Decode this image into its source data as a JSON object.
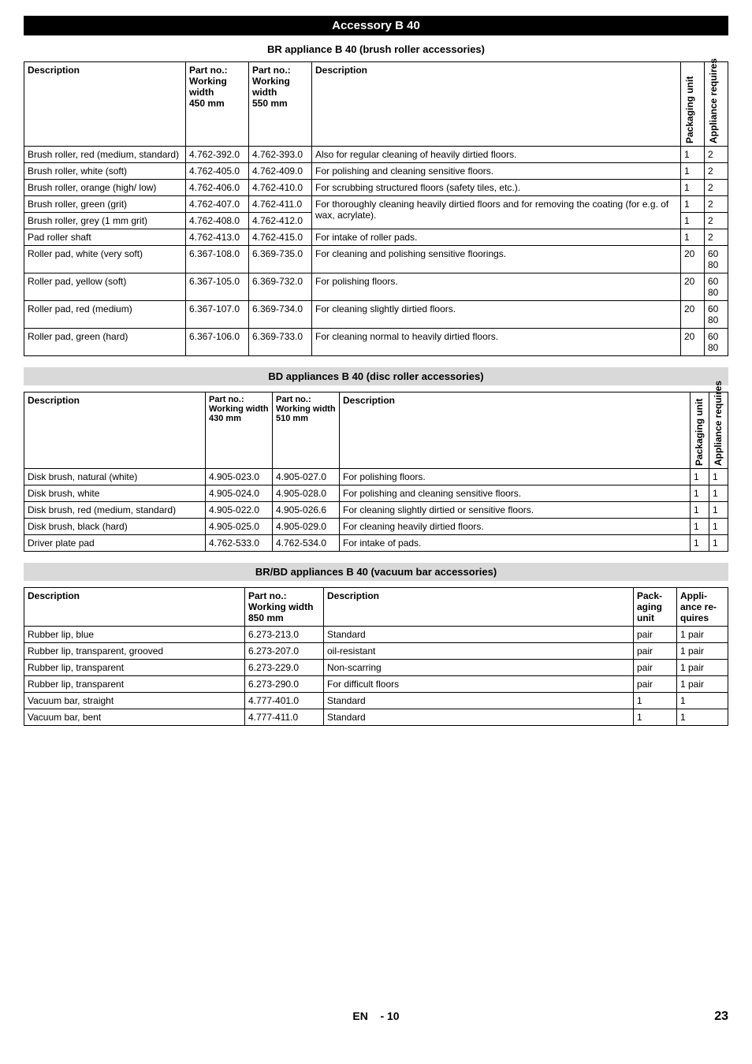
{
  "header": "Accessory B 40",
  "section1": {
    "title": "BR appliance B 40 (brush roller accessories)",
    "headers": {
      "desc": "Description",
      "part1": "Part no.:\nWorking width\n450 mm",
      "part2": "Part no.:\nWorking width\n550 mm",
      "desc2": "Description",
      "pack": "Packaging unit",
      "appl": "Appliance requires"
    },
    "rows": [
      {
        "d": "Brush roller, red (medium, standard)",
        "p1": "4.762-392.0",
        "p2": "4.762-393.0",
        "d2": "Also for regular cleaning of heavily dirtied floors.",
        "pk": "1",
        "ap": "2",
        "rowspan": 1
      },
      {
        "d": "Brush roller, white (soft)",
        "p1": "4.762-405.0",
        "p2": "4.762-409.0",
        "d2": "For polishing and cleaning sensitive floors.",
        "pk": "1",
        "ap": "2",
        "rowspan": 1
      },
      {
        "d": "Brush roller, orange (high/ low)",
        "p1": "4.762-406.0",
        "p2": "4.762-410.0",
        "d2": "For scrubbing structured floors (safety tiles, etc.).",
        "pk": "1",
        "ap": "2",
        "rowspan": 1
      },
      {
        "d": "Brush roller, green (grit)",
        "p1": "4.762-407.0",
        "p2": "4.762-411.0",
        "d2": "For thoroughly cleaning heavily dirtied floors and for removing the coating (for e.g. of wax, acrylate).",
        "pk": "1",
        "ap": "2",
        "rowspan": 2
      },
      {
        "d": "Brush roller, grey (1 mm grit)",
        "p1": "4.762-408.0",
        "p2": "4.762-412.0",
        "d2": "",
        "pk": "1",
        "ap": "2",
        "rowspan": 0
      },
      {
        "d": "Pad roller shaft",
        "p1": "4.762-413.0",
        "p2": "4.762-415.0",
        "d2": "For intake of roller pads.",
        "pk": "1",
        "ap": "2",
        "rowspan": 1
      },
      {
        "d": "Roller pad, white (very soft)",
        "p1": "6.367-108.0",
        "p2": "6.369-735.0",
        "d2": "For cleaning and polishing sensitive floorings.",
        "pk": "20",
        "ap": "60\n80",
        "rowspan": 1
      },
      {
        "d": "Roller pad, yellow (soft)",
        "p1": "6.367-105.0",
        "p2": "6.369-732.0",
        "d2": "For polishing floors.",
        "pk": "20",
        "ap": "60\n80",
        "rowspan": 1
      },
      {
        "d": "Roller pad, red (medium)",
        "p1": "6.367-107.0",
        "p2": "6.369-734.0",
        "d2": "For cleaning slightly dirtied floors.",
        "pk": "20",
        "ap": "60\n80",
        "rowspan": 1
      },
      {
        "d": "Roller pad, green (hard)",
        "p1": "6.367-106.0",
        "p2": "6.369-733.0",
        "d2": "For cleaning normal to heavily dirtied floors.",
        "pk": "20",
        "ap": "60\n80",
        "rowspan": 1
      }
    ]
  },
  "section2": {
    "title": "BD appliances B 40 (disc roller accessories)",
    "headers": {
      "desc": "Description",
      "part1": "Part no.:\nWorking width 430 mm",
      "part2": "Part no.:\nWorking width 510 mm",
      "desc2": "Description",
      "pack": "Packaging unit",
      "appl": "Appliance requires"
    },
    "rows": [
      {
        "d": "Disk brush, natural (white)",
        "p1": "4.905-023.0",
        "p2": "4.905-027.0",
        "d2": "For polishing floors.",
        "pk": "1",
        "ap": "1"
      },
      {
        "d": "Disk brush, white",
        "p1": "4.905-024.0",
        "p2": "4.905-028.0",
        "d2": "For polishing and cleaning sensitive floors.",
        "pk": "1",
        "ap": "1"
      },
      {
        "d": "Disk brush, red (medium, standard)",
        "p1": "4.905-022.0",
        "p2": "4.905-026.6",
        "d2": "For cleaning slightly dirtied or sensitive floors.",
        "pk": "1",
        "ap": "1"
      },
      {
        "d": "Disk brush, black (hard)",
        "p1": "4.905-025.0",
        "p2": "4.905-029.0",
        "d2": "For cleaning heavily dirtied floors.",
        "pk": "1",
        "ap": "1"
      },
      {
        "d": "Driver plate pad",
        "p1": "4.762-533.0",
        "p2": "4.762-534.0",
        "d2": "For intake of pads.",
        "pk": "1",
        "ap": "1"
      }
    ]
  },
  "section3": {
    "title": "BR/BD appliances B 40 (vacuum bar accessories)",
    "headers": {
      "desc": "Description",
      "part": "Part no.:\nWorking width\n850 mm",
      "desc2": "Description",
      "pack": "Packaging unit",
      "appl": "Appliance requires"
    },
    "rows": [
      {
        "d": "Rubber lip, blue",
        "p": "6.273-213.0",
        "d2": "Standard",
        "pk": "pair",
        "ap": "1 pair"
      },
      {
        "d": "Rubber lip, transparent, grooved",
        "p": "6.273-207.0",
        "d2": "oil-resistant",
        "pk": "pair",
        "ap": "1 pair"
      },
      {
        "d": "Rubber lip, transparent",
        "p": "6.273-229.0",
        "d2": "Non-scarring",
        "pk": "pair",
        "ap": "1 pair"
      },
      {
        "d": "Rubber lip, transparent",
        "p": "6.273-290.0",
        "d2": "For difficult floors",
        "pk": "pair",
        "ap": "1 pair"
      },
      {
        "d": "Vacuum bar, straight",
        "p": "4.777-401.0",
        "d2": "Standard",
        "pk": "1",
        "ap": "1"
      },
      {
        "d": "Vacuum bar, bent",
        "p": "4.777-411.0",
        "d2": "Standard",
        "pk": "1",
        "ap": "1"
      }
    ]
  },
  "footer": {
    "lang": "EN",
    "dash": "-",
    "page": "10",
    "total": "23"
  }
}
